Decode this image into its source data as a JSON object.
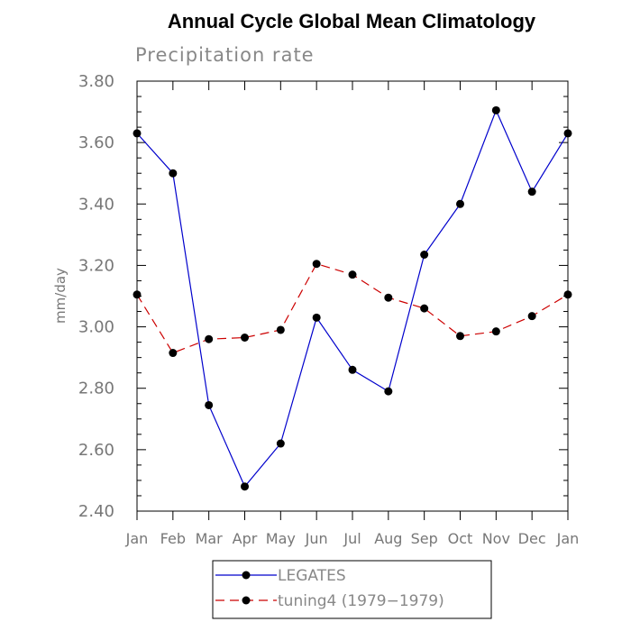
{
  "chart_data": {
    "type": "line",
    "title": "Annual Cycle Global Mean Climatology",
    "subtitle": "Precipitation rate",
    "xlabel": "",
    "ylabel": "mm/day",
    "categories": [
      "Jan",
      "Feb",
      "Mar",
      "Apr",
      "May",
      "Jun",
      "Jul",
      "Aug",
      "Sep",
      "Oct",
      "Nov",
      "Dec",
      "Jan"
    ],
    "ylim": [
      2.4,
      3.8
    ],
    "yticks": [
      "2.40",
      "2.60",
      "2.80",
      "3.00",
      "3.20",
      "3.40",
      "3.60",
      "3.80"
    ],
    "grid": false,
    "legend_position": "bottom-center",
    "series": [
      {
        "name": "LEGATES",
        "color": "#0000cc",
        "style": "solid",
        "marker": "filled-circle",
        "values": [
          3.63,
          3.5,
          2.745,
          2.48,
          2.62,
          3.03,
          2.86,
          2.79,
          3.235,
          3.4,
          3.705,
          3.44,
          3.63
        ]
      },
      {
        "name": "tuning4 (1979−1979)",
        "color": "#cc0000",
        "style": "dashed",
        "marker": "filled-circle",
        "values": [
          3.105,
          2.915,
          2.96,
          2.965,
          2.99,
          3.205,
          3.17,
          3.095,
          3.06,
          2.97,
          2.985,
          3.035,
          3.105
        ]
      }
    ]
  }
}
